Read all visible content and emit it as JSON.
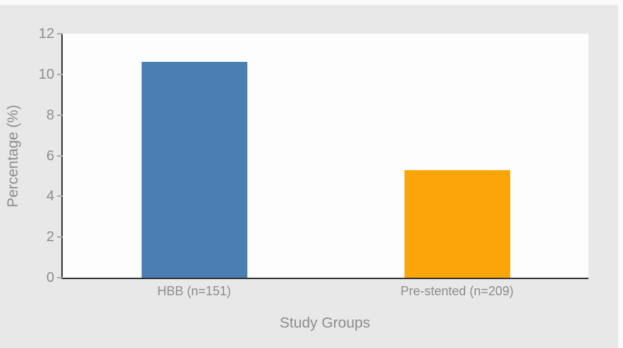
{
  "page": {
    "background_color": "#e8e8e8",
    "edge_highlight_color": "#fafafa",
    "plot_background": "#fdfdfd",
    "axis_color": "#2f2f2f",
    "label_color": "#8c8c8c",
    "tick_mark_color": "#a9a9a9"
  },
  "chart_data": {
    "type": "bar",
    "categories": [
      "HBB (n=151)",
      "Pre-stented (n=209)"
    ],
    "values": [
      10.6,
      5.3
    ],
    "bar_colors": [
      "#4b7fb4",
      "#fca508"
    ],
    "title": "",
    "xlabel": "Study Groups",
    "ylabel": "Percentage (%)",
    "ylim": [
      0,
      12
    ],
    "yticks": [
      0,
      2,
      4,
      6,
      8,
      10,
      12
    ],
    "grid": false,
    "legend": false
  }
}
